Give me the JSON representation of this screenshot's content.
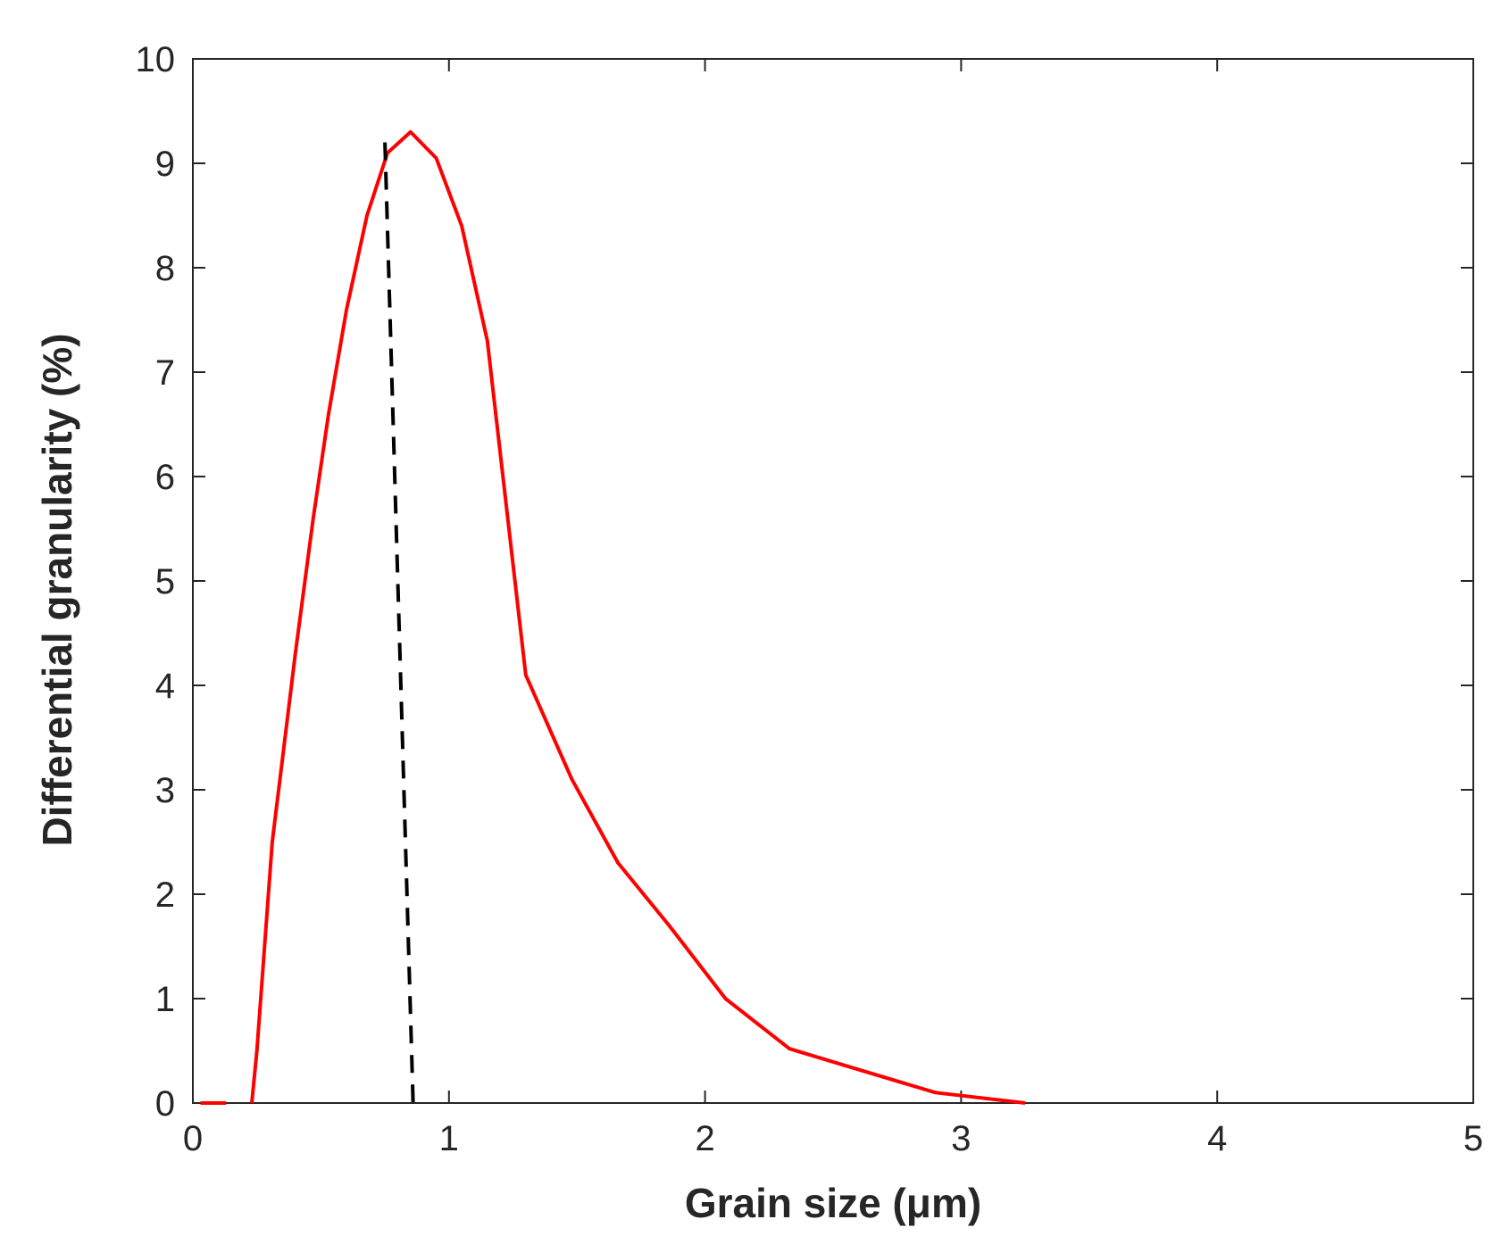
{
  "chart_data": {
    "type": "line",
    "title": "",
    "xlabel": "Grain size (μm)",
    "ylabel": "Differential granularity (%)",
    "xlim": [
      0,
      5
    ],
    "ylim": [
      0,
      10
    ],
    "xticks": [
      "0",
      "1",
      "2",
      "3",
      "4",
      "5"
    ],
    "yticks": [
      "0",
      "1",
      "2",
      "3",
      "4",
      "5",
      "6",
      "7",
      "8",
      "9",
      "10"
    ],
    "grid": false,
    "series": [
      {
        "color": "#ff0000",
        "segments": [
          {
            "x": [
              0.03,
              0.13
            ],
            "y": [
              0,
              0
            ]
          },
          {
            "x": [
              0.23,
              0.25,
              0.28,
              0.31,
              0.35,
              0.4,
              0.47,
              0.53,
              0.6,
              0.68,
              0.76,
              0.85,
              0.95,
              1.05,
              1.15,
              1.3,
              1.48,
              1.66,
              1.86,
              2.08,
              2.33,
              2.6,
              2.9,
              3.25
            ],
            "y": [
              0,
              0.5,
              1.5,
              2.5,
              3.3,
              4.3,
              5.6,
              6.6,
              7.6,
              8.5,
              9.1,
              9.3,
              9.05,
              8.4,
              7.3,
              4.1,
              3.1,
              2.3,
              1.7,
              1.0,
              0.52,
              0.32,
              0.1,
              0
            ]
          }
        ]
      }
    ],
    "annotations": [
      {
        "type": "dashed-line",
        "color": "#000000",
        "x": [
          0.75,
          0.86
        ],
        "y": [
          9.2,
          0
        ]
      }
    ]
  }
}
